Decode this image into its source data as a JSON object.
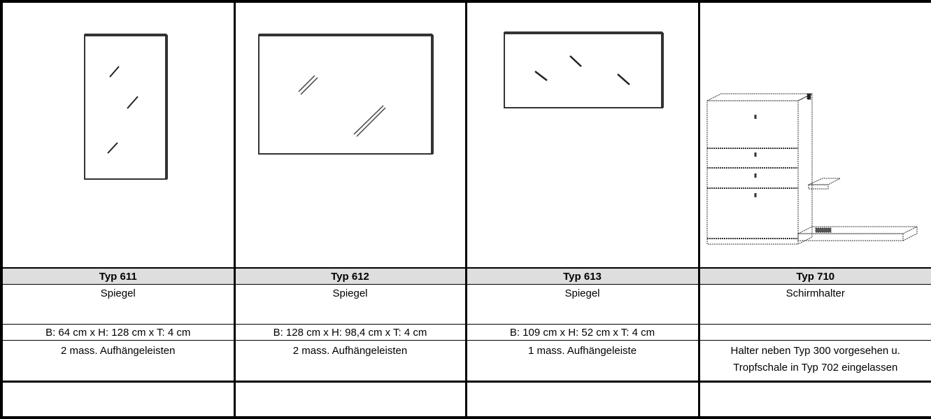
{
  "products": [
    {
      "type": "Typ 611",
      "name": "Spiegel",
      "dimensions": "B: 64 cm x H: 128 cm x T: 4 cm",
      "notes": [
        "2 mass. Aufhängeleisten"
      ]
    },
    {
      "type": "Typ 612",
      "name": "Spiegel",
      "dimensions": "B: 128 cm x H: 98,4 cm x T: 4 cm",
      "notes": [
        "2 mass. Aufhängeleisten"
      ]
    },
    {
      "type": "Typ 613",
      "name": "Spiegel",
      "dimensions": "B: 109 cm x H: 52 cm x T: 4 cm",
      "notes": [
        "1 mass. Aufhängeleiste"
      ]
    },
    {
      "type": "Typ 710",
      "name": "Schirmhalter",
      "notes": [
        "Halter neben Typ 300 vorgesehen u.",
        "Tropfschale in Typ 702 eingelassen"
      ]
    }
  ]
}
